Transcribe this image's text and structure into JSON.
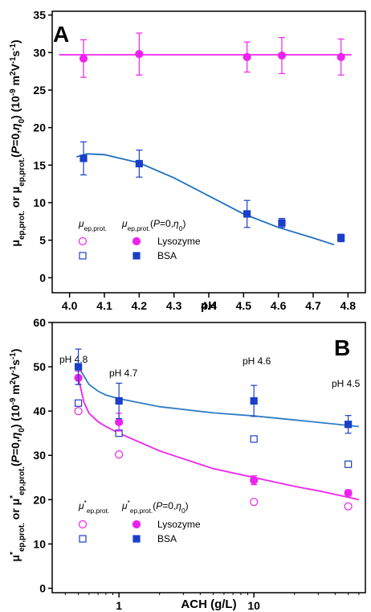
{
  "chart_data": [
    {
      "type": "scatter",
      "panel_label": "A",
      "xlabel": "pH",
      "ylabel": [
        "μ",
        "ep,prot.",
        " or ",
        "μ",
        "ep,prot.",
        "(",
        "P",
        "=0,",
        "η",
        "0",
        ")",
        " (10",
        "-9",
        " m",
        "2",
        "V",
        "-1",
        "s",
        "-1",
        ")"
      ],
      "xlim": [
        3.95,
        4.85
      ],
      "xticks": [
        {
          "value": 4,
          "label": "4.0"
        },
        4.1,
        4.2,
        4.3,
        4.4,
        4.5,
        4.6,
        4.7,
        4.8
      ],
      "ylim": [
        -2,
        35.5
      ],
      "yticks": [
        0,
        5,
        10,
        15,
        20,
        25,
        30,
        35
      ],
      "series": [
        {
          "color": "#ee22ee",
          "marker": "circle",
          "filled": true,
          "x": [
            4.04,
            4.2,
            4.51,
            4.61,
            4.78
          ],
          "values": [
            29.2,
            29.8,
            29.4,
            29.6,
            29.4
          ],
          "errors": [
            2.5,
            2.8,
            2,
            2.4,
            2.4
          ]
        },
        {
          "color": "#1a3fc8",
          "marker": "square",
          "filled": true,
          "x": [
            4.04,
            4.2,
            4.51,
            4.61,
            4.78
          ],
          "values": [
            15.9,
            15.2,
            8.5,
            7.3,
            5.3
          ],
          "errors": [
            2.2,
            1.8,
            1.8,
            0.6,
            0.5
          ]
        }
      ],
      "fits": [
        {
          "color": "#ee22ee",
          "x": [
            3.97,
            4.81
          ],
          "values": [
            29.7,
            29.7
          ]
        },
        {
          "color": "#1f6fc0",
          "x": [
            4.02,
            4.05,
            4.1,
            4.2,
            4.3,
            4.4,
            4.5,
            4.6,
            4.7,
            4.76
          ],
          "values": [
            16.1,
            16.5,
            16.4,
            15.3,
            13.3,
            10.9,
            8.5,
            6.7,
            5.3,
            4.4
          ]
        }
      ],
      "legend": {
        "headers": [
          [
            "μ",
            "ep,prot."
          ],
          [
            "μ",
            "ep,prot.",
            "(",
            "P",
            "=0,",
            "η",
            "0",
            ")"
          ]
        ],
        "rows": [
          {
            "name": "Lysozyme",
            "color": "#ee22ee",
            "marker": "circle"
          },
          {
            "name": "BSA",
            "color": "#1a3fc8",
            "marker": "square"
          }
        ]
      }
    },
    {
      "type": "scatter",
      "panel_label": "B",
      "xlabel": "ACH (g/L)",
      "xlog": true,
      "ylabel": [
        "μ",
        "*",
        "ep,prot.",
        " or ",
        "μ",
        "*",
        "ep,prot.",
        "(",
        "P",
        "=0,",
        "η",
        "0",
        ")",
        " (10",
        "-9",
        " m",
        "2",
        "V",
        "-1",
        "s",
        "-1",
        ")"
      ],
      "xlim": [
        0.32,
        67
      ],
      "xticks": [
        1,
        10
      ],
      "xminorticks": [
        0.4,
        0.5,
        0.6,
        0.7,
        0.8,
        0.9,
        2,
        3,
        4,
        5,
        6,
        7,
        8,
        9,
        20,
        30,
        40,
        50,
        60
      ],
      "ylim": [
        -1,
        60
      ],
      "yticks": [
        0,
        10,
        20,
        30,
        40,
        50,
        60
      ],
      "annotations": [
        "pH 4.8",
        "pH 4.7",
        "pH 4.6",
        "pH 4.5"
      ],
      "series": [
        {
          "color": "#ee22ee",
          "marker": "circle",
          "filled": false,
          "x": [
            0.5,
            1,
            10,
            50
          ],
          "values": [
            40,
            30.2,
            19.5,
            18.5
          ]
        },
        {
          "color": "#1a3fc8",
          "marker": "square",
          "filled": false,
          "x": [
            0.5,
            1,
            10,
            50
          ],
          "values": [
            41.8,
            35,
            33.7,
            28
          ]
        },
        {
          "color": "#ee22ee",
          "marker": "circle",
          "filled": true,
          "x": [
            0.5,
            1,
            10,
            50
          ],
          "values": [
            47.5,
            37.5,
            24.4,
            21.5
          ],
          "errors": [
            1.5,
            2,
            1,
            0.7
          ]
        },
        {
          "color": "#1a3fc8",
          "marker": "square",
          "filled": true,
          "x": [
            0.5,
            1,
            10,
            50
          ],
          "values": [
            50,
            42.3,
            42.3,
            37
          ],
          "errors": [
            4,
            4,
            3.5,
            2
          ]
        }
      ],
      "fits": [
        {
          "color": "#ee22ee",
          "x": [
            0.5,
            0.55,
            0.6,
            0.7,
            0.8,
            1,
            2,
            5,
            10,
            20,
            30,
            60
          ],
          "values": [
            47.5,
            42,
            39.5,
            37.6,
            36.5,
            35,
            31,
            27,
            25,
            23,
            22,
            20
          ]
        },
        {
          "color": "#2f7cc4",
          "x": [
            0.5,
            0.6,
            0.7,
            0.8,
            1,
            2,
            5,
            10,
            20,
            60
          ],
          "values": [
            50,
            46,
            44.5,
            43.6,
            42.8,
            41,
            39.6,
            38.9,
            38,
            36.5
          ]
        }
      ],
      "legend": {
        "headers": [
          [
            "μ",
            "*",
            "ep,prot."
          ],
          [
            "μ",
            "*",
            "ep,prot.",
            "(",
            "P",
            "=0,",
            "η",
            "0",
            ")"
          ]
        ],
        "rows": [
          {
            "name": "Lysozyme",
            "color": "#ee22ee",
            "marker": "circle"
          },
          {
            "name": "BSA",
            "color": "#1a3fc8",
            "marker": "square"
          }
        ]
      }
    }
  ]
}
